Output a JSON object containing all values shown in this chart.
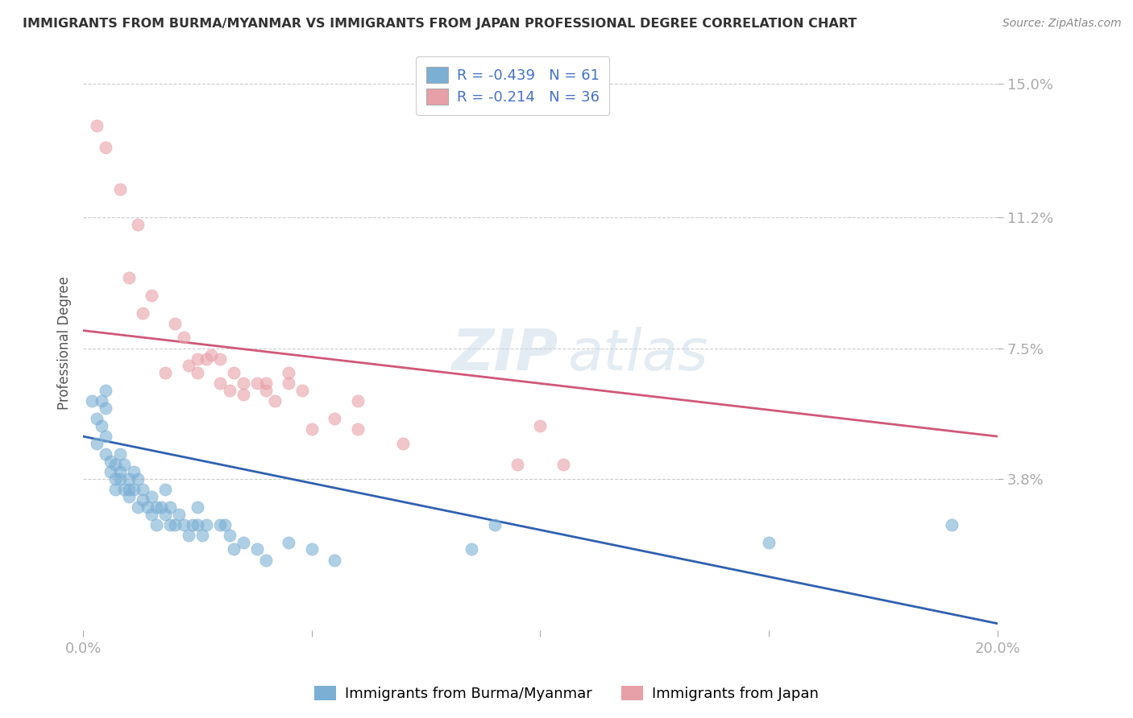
{
  "title": "IMMIGRANTS FROM BURMA/MYANMAR VS IMMIGRANTS FROM JAPAN PROFESSIONAL DEGREE CORRELATION CHART",
  "source": "Source: ZipAtlas.com",
  "ylabel": "Professional Degree",
  "x_min": 0.0,
  "x_max": 0.2,
  "y_min": -0.005,
  "y_max": 0.158,
  "y_ticks": [
    0.038,
    0.075,
    0.112,
    0.15
  ],
  "y_tick_labels": [
    "3.8%",
    "7.5%",
    "11.2%",
    "15.0%"
  ],
  "x_ticks": [
    0.0,
    0.05,
    0.1,
    0.15,
    0.2
  ],
  "x_tick_labels": [
    "0.0%",
    "",
    "",
    "",
    "20.0%"
  ],
  "blue_color": "#7bafd4",
  "pink_color": "#e8a0a8",
  "blue_line_color": "#3060b0",
  "pink_line_color": "#d05878",
  "blue_R": -0.439,
  "blue_N": 61,
  "pink_R": -0.214,
  "pink_N": 36,
  "legend_label_blue": "Immigrants from Burma/Myanmar",
  "legend_label_pink": "Immigrants from Japan",
  "blue_line_x0": 0.0,
  "blue_line_y0": 0.05,
  "blue_line_x1": 0.2,
  "blue_line_y1": -0.003,
  "pink_line_x0": 0.0,
  "pink_line_y0": 0.08,
  "pink_line_x1": 0.2,
  "pink_line_y1": 0.05,
  "blue_scatter_x": [
    0.002,
    0.003,
    0.003,
    0.004,
    0.004,
    0.005,
    0.005,
    0.005,
    0.005,
    0.006,
    0.006,
    0.007,
    0.007,
    0.007,
    0.008,
    0.008,
    0.008,
    0.009,
    0.009,
    0.01,
    0.01,
    0.01,
    0.011,
    0.011,
    0.012,
    0.012,
    0.013,
    0.013,
    0.014,
    0.015,
    0.015,
    0.016,
    0.016,
    0.017,
    0.018,
    0.018,
    0.019,
    0.019,
    0.02,
    0.021,
    0.022,
    0.023,
    0.024,
    0.025,
    0.025,
    0.026,
    0.027,
    0.03,
    0.031,
    0.032,
    0.033,
    0.035,
    0.038,
    0.04,
    0.045,
    0.05,
    0.055,
    0.085,
    0.09,
    0.15,
    0.19
  ],
  "blue_scatter_y": [
    0.06,
    0.055,
    0.048,
    0.053,
    0.06,
    0.045,
    0.05,
    0.058,
    0.063,
    0.04,
    0.043,
    0.038,
    0.042,
    0.035,
    0.04,
    0.045,
    0.038,
    0.035,
    0.042,
    0.035,
    0.038,
    0.033,
    0.035,
    0.04,
    0.03,
    0.038,
    0.032,
    0.035,
    0.03,
    0.033,
    0.028,
    0.03,
    0.025,
    0.03,
    0.028,
    0.035,
    0.025,
    0.03,
    0.025,
    0.028,
    0.025,
    0.022,
    0.025,
    0.025,
    0.03,
    0.022,
    0.025,
    0.025,
    0.025,
    0.022,
    0.018,
    0.02,
    0.018,
    0.015,
    0.02,
    0.018,
    0.015,
    0.018,
    0.025,
    0.02,
    0.025
  ],
  "pink_scatter_x": [
    0.003,
    0.005,
    0.008,
    0.01,
    0.012,
    0.013,
    0.015,
    0.018,
    0.02,
    0.022,
    0.023,
    0.025,
    0.025,
    0.027,
    0.028,
    0.03,
    0.03,
    0.032,
    0.033,
    0.035,
    0.035,
    0.038,
    0.04,
    0.04,
    0.042,
    0.045,
    0.045,
    0.048,
    0.05,
    0.055,
    0.06,
    0.06,
    0.07,
    0.095,
    0.1,
    0.105
  ],
  "pink_scatter_y": [
    0.138,
    0.132,
    0.12,
    0.095,
    0.11,
    0.085,
    0.09,
    0.068,
    0.082,
    0.078,
    0.07,
    0.072,
    0.068,
    0.072,
    0.073,
    0.065,
    0.072,
    0.063,
    0.068,
    0.062,
    0.065,
    0.065,
    0.063,
    0.065,
    0.06,
    0.065,
    0.068,
    0.063,
    0.052,
    0.055,
    0.052,
    0.06,
    0.048,
    0.042,
    0.053,
    0.042
  ]
}
